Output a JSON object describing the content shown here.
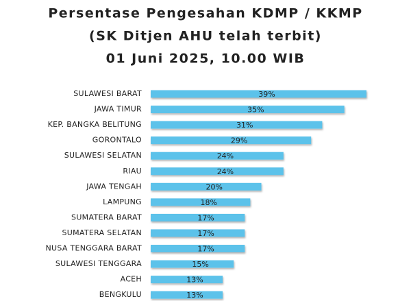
{
  "chart_data": {
    "type": "bar",
    "orientation": "horizontal",
    "title_lines": [
      "Persentase Pengesahan KDMP / KKMP",
      "(SK Ditjen AHU telah terbit)",
      "01 Juni 2025, 10.00 WIB"
    ],
    "categories": [
      "SULAWESI BARAT",
      "JAWA TIMUR",
      "KEP. BANGKA BELITUNG",
      "GORONTALO",
      "SULAWESI SELATAN",
      "RIAU",
      "JAWA TENGAH",
      "LAMPUNG",
      "SUMATERA BARAT",
      "SUMATERA SELATAN",
      "NUSA TENGGARA BARAT",
      "SULAWESI TENGGARA",
      "ACEH",
      "BENGKULU"
    ],
    "values": [
      39,
      35,
      31,
      29,
      24,
      24,
      20,
      18,
      17,
      17,
      17,
      15,
      13,
      13
    ],
    "value_labels": [
      "39%",
      "35%",
      "31%",
      "29%",
      "24%",
      "24%",
      "20%",
      "18%",
      "17%",
      "17%",
      "17%",
      "15%",
      "13%",
      "13%"
    ],
    "color": "#5bc2ea"
  }
}
